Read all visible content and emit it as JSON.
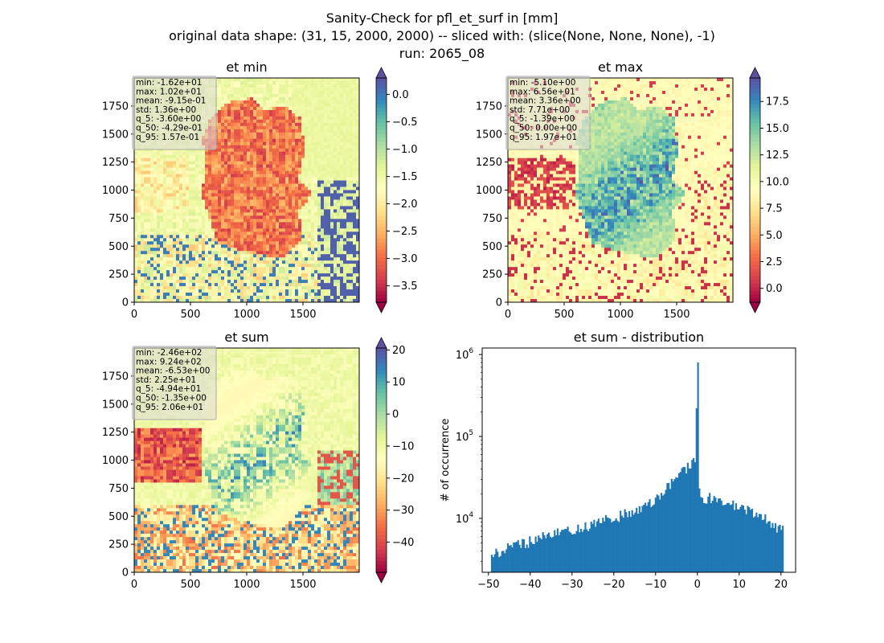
{
  "figure": {
    "title_lines": [
      "Sanity-Check for pfl_et_surf in [mm]",
      "original data shape: (31, 15, 2000, 2000) -- sliced with: (slice(None, None, None), -1)",
      "run: 2065_08"
    ]
  },
  "chart_data": [
    {
      "type": "heatmap",
      "title": "et min",
      "x_ticks": [
        0,
        500,
        1000,
        1500
      ],
      "y_ticks": [
        0,
        250,
        500,
        750,
        1000,
        1250,
        1500,
        1750
      ],
      "xlim": [
        0,
        2000
      ],
      "ylim": [
        0,
        2000
      ],
      "colormap": "Spectral",
      "colorbar_extend": "both",
      "colorbar_range": [
        -3.8,
        0.3
      ],
      "colorbar_ticks": [
        "0.0",
        "−0.5",
        "−1.0",
        "−1.5",
        "−2.0",
        "−2.5",
        "−3.0",
        "−3.5"
      ],
      "colorbar_tick_values": [
        0.0,
        -0.5,
        -1.0,
        -1.5,
        -2.0,
        -2.5,
        -3.0,
        -3.5
      ],
      "stats": [
        "min: -1.62e+01",
        "max: 1.02e+01",
        "mean: -9.15e-01",
        "std: 1.36e+00",
        "q_5: -3.60e+00",
        "q_50: -4.29e-01",
        "q_95: 1.57e-01"
      ]
    },
    {
      "type": "heatmap",
      "title": "et max",
      "x_ticks": [
        0,
        500,
        1000,
        1500
      ],
      "y_ticks": [
        0,
        250,
        500,
        750,
        1000,
        1250,
        1500,
        1750
      ],
      "xlim": [
        0,
        2000
      ],
      "ylim": [
        0,
        2000
      ],
      "colormap": "Spectral",
      "colorbar_extend": "both",
      "colorbar_range": [
        -1.3,
        19.7
      ],
      "colorbar_ticks": [
        "17.5",
        "15.0",
        "12.5",
        "10.0",
        "7.5",
        "5.0",
        "2.5",
        "0.0"
      ],
      "colorbar_tick_values": [
        17.5,
        15.0,
        12.5,
        10.0,
        7.5,
        5.0,
        2.5,
        0.0
      ],
      "stats": [
        "min: -5.10e+00",
        "max: 6.56e+01",
        "mean: 3.36e+00",
        "std: 7.71e+00",
        "q_5: -1.39e+00",
        "q_50: 0.00e+00",
        "q_95: 1.97e+01"
      ]
    },
    {
      "type": "heatmap",
      "title": "et sum",
      "x_ticks": [
        0,
        500,
        1000,
        1500
      ],
      "y_ticks": [
        0,
        250,
        500,
        750,
        1000,
        1250,
        1500,
        1750
      ],
      "xlim": [
        0,
        2000
      ],
      "ylim": [
        0,
        2000
      ],
      "colormap": "Spectral",
      "colorbar_extend": "both",
      "colorbar_range": [
        -49.4,
        20.6
      ],
      "colorbar_ticks": [
        "20",
        "10",
        "0",
        "−10",
        "−20",
        "−30",
        "−40"
      ],
      "colorbar_tick_values": [
        20,
        10,
        0,
        -10,
        -20,
        -30,
        -40
      ],
      "stats": [
        "min: -2.46e+02",
        "max: 9.24e+02",
        "mean: -6.53e+00",
        "std: 2.25e+01",
        "q_5: -4.94e+01",
        "q_50: -1.35e+00",
        "q_95: 2.06e+01"
      ]
    },
    {
      "type": "bar",
      "title": "et sum - distribution",
      "ylabel": "# of occurrence",
      "xlabel": "",
      "y_scale": "log",
      "xlim": [
        -51.5,
        23.5
      ],
      "ylim": [
        2200,
        1200000
      ],
      "x_ticks": [
        -50,
        -40,
        -30,
        -20,
        -10,
        0,
        10,
        20
      ],
      "x_tick_labels": [
        "−50",
        "−40",
        "−30",
        "−20",
        "−10",
        "0",
        "10",
        "20"
      ],
      "y_ticks": [
        10000,
        100000,
        1000000
      ],
      "y_tick_labels": [
        "10^4",
        "10^5",
        "10^6"
      ],
      "bin_edges_range": [
        -49.4,
        20.6
      ],
      "bin_count": 200,
      "bar_color": "#1f77b4",
      "profile_x": [
        -49.4,
        -45,
        -40,
        -35,
        -30,
        -25,
        -20,
        -15,
        -10,
        -5,
        -2,
        -0.5,
        0,
        0.5,
        1,
        5,
        10,
        15,
        20.6
      ],
      "profile_y": [
        3600,
        4300,
        5200,
        6200,
        7200,
        8400,
        10000,
        12500,
        17000,
        30000,
        45000,
        55000,
        800000,
        20000,
        18000,
        17000,
        14000,
        10500,
        7000
      ]
    }
  ]
}
